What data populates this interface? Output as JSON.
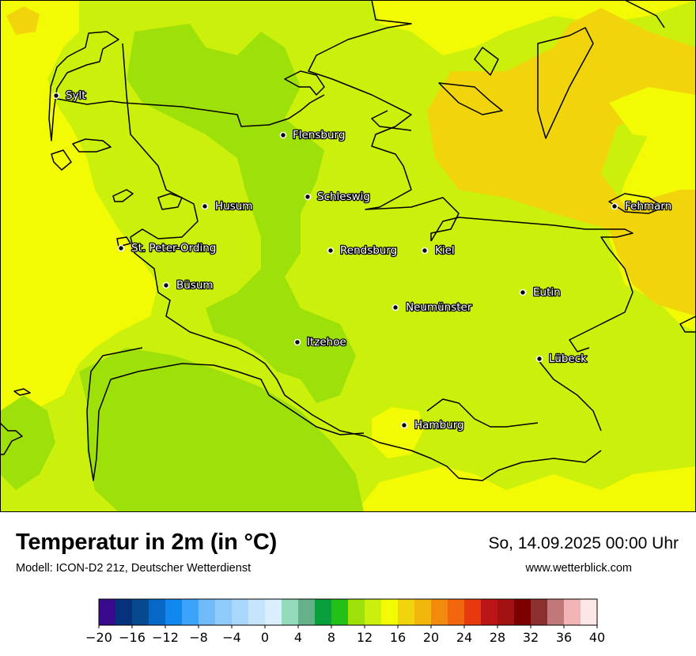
{
  "title": "Temperatur in 2m (in °C)",
  "model": "Modell: ICON-D2 21z, Deutscher Wetterdienst",
  "datetime": "So, 14.09.2025 00:00 Uhr",
  "website": "www.wetterblick.com",
  "cities": [
    {
      "name": "Sylt"
    },
    {
      "name": "Flensburg"
    },
    {
      "name": "Schleswig"
    },
    {
      "name": "Husum"
    },
    {
      "name": "Fehmarn"
    },
    {
      "name": "St. Peter-Ording"
    },
    {
      "name": "Rendsburg"
    },
    {
      "name": "Kiel"
    },
    {
      "name": "Büsum"
    },
    {
      "name": "Eutin"
    },
    {
      "name": "Neumünster"
    },
    {
      "name": "Itzehoe"
    },
    {
      "name": "Lübeck"
    },
    {
      "name": "Hamburg"
    }
  ],
  "legend": {
    "ticks": [
      "−20",
      "−16",
      "−12",
      "−8",
      "−4",
      "0",
      "4",
      "8",
      "12",
      "16",
      "20",
      "24",
      "28",
      "32",
      "36",
      "40"
    ],
    "colors": [
      "#3a0a8c",
      "#06317b",
      "#054a8f",
      "#0667c6",
      "#1188ee",
      "#3ba3fb",
      "#72bbfb",
      "#8ecbfb",
      "#a9d7fb",
      "#c6e4fb",
      "#daeefd",
      "#94dbbb",
      "#65b28a",
      "#0a9f3d",
      "#22bf17",
      "#9ee00a",
      "#cbf00c",
      "#f3fb04",
      "#f2d40d",
      "#f2b70d",
      "#f28a0d",
      "#f2660d",
      "#e8380e",
      "#bb1515",
      "#a21212",
      "#7c0000",
      "#8c2f2f",
      "#c07878",
      "#f2b4b4",
      "#fde6e6"
    ]
  },
  "palette": {
    "t13": "#9ee00a",
    "t15": "#cbf00c",
    "t17": "#f3fb04",
    "t19": "#f2d40d"
  }
}
